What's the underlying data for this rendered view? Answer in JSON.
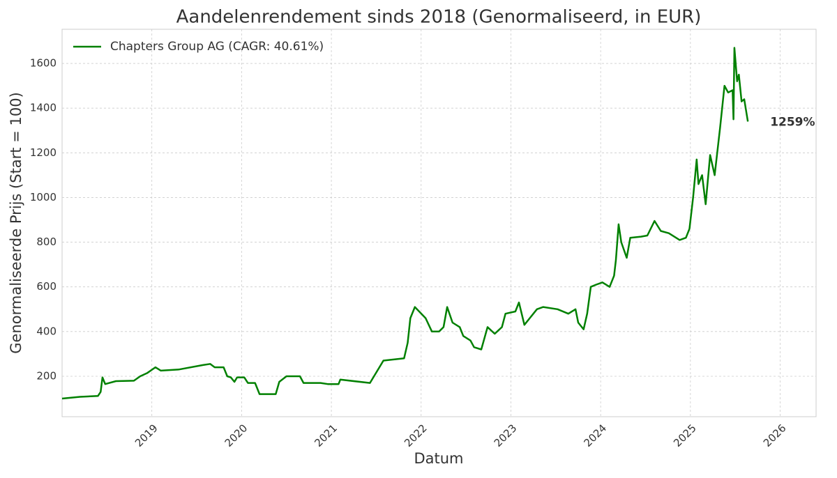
{
  "chart_data": {
    "type": "line",
    "title": "Aandelenrendement sinds 2018 (Genormaliseerd, in EUR)",
    "x_label": "Datum",
    "y_label": "Genormaliseerde Prijs (Start = 100)",
    "annotation": "1259%",
    "legend": "upper left",
    "grid": true,
    "xlim": [
      2018.0,
      2026.4
    ],
    "xticks": [
      2019,
      2020,
      2021,
      2022,
      2023,
      2024,
      2025,
      2026
    ],
    "ylim": [
      19,
      1753
    ],
    "yticks": [
      200,
      400,
      600,
      800,
      1000,
      1200,
      1400,
      1600
    ],
    "x": [
      2018.0,
      2018.2,
      2018.4,
      2018.43,
      2018.45,
      2018.48,
      2018.6,
      2018.8,
      2018.87,
      2018.95,
      2019.04,
      2019.1,
      2019.3,
      2019.57,
      2019.65,
      2019.7,
      2019.8,
      2019.84,
      2019.88,
      2019.92,
      2019.95,
      2020.03,
      2020.07,
      2020.15,
      2020.2,
      2020.38,
      2020.42,
      2020.5,
      2020.65,
      2020.69,
      2020.88,
      2020.96,
      2021.08,
      2021.1,
      2021.43,
      2021.55,
      2021.58,
      2021.81,
      2021.85,
      2021.88,
      2021.93,
      2022.05,
      2022.12,
      2022.2,
      2022.25,
      2022.29,
      2022.35,
      2022.43,
      2022.47,
      2022.55,
      2022.59,
      2022.67,
      2022.74,
      2022.82,
      2022.9,
      2022.94,
      2023.05,
      2023.09,
      2023.15,
      2023.21,
      2023.29,
      2023.36,
      2023.52,
      2023.64,
      2023.72,
      2023.75,
      2023.81,
      2023.85,
      2023.89,
      2023.95,
      2024.02,
      2024.1,
      2024.15,
      2024.17,
      2024.2,
      2024.23,
      2024.29,
      2024.33,
      2024.45,
      2024.52,
      2024.6,
      2024.67,
      2024.76,
      2024.88,
      2024.95,
      2024.99,
      2025.03,
      2025.07,
      2025.09,
      2025.13,
      2025.17,
      2025.22,
      2025.27,
      2025.33,
      2025.38,
      2025.42,
      2025.47,
      2025.48,
      2025.49,
      2025.52,
      2025.54,
      2025.57,
      2025.6,
      2025.64
    ],
    "series": [
      {
        "name": "Chapters Group AG (CAGR: 40.61%)",
        "color": "#008000",
        "values": [
          100,
          108,
          112,
          130,
          195,
          165,
          178,
          180,
          200,
          215,
          240,
          225,
          230,
          250,
          255,
          240,
          240,
          200,
          195,
          175,
          195,
          195,
          170,
          170,
          120,
          120,
          175,
          200,
          200,
          170,
          170,
          165,
          165,
          185,
          170,
          250,
          270,
          280,
          350,
          460,
          510,
          460,
          400,
          400,
          420,
          510,
          440,
          420,
          380,
          360,
          330,
          320,
          420,
          390,
          420,
          480,
          490,
          530,
          430,
          460,
          500,
          510,
          500,
          480,
          500,
          440,
          410,
          480,
          600,
          610,
          620,
          600,
          650,
          720,
          880,
          800,
          730,
          820,
          825,
          830,
          895,
          850,
          840,
          810,
          820,
          860,
          1000,
          1170,
          1060,
          1100,
          970,
          1190,
          1100,
          1310,
          1500,
          1470,
          1480,
          1350,
          1670,
          1520,
          1550,
          1430,
          1440,
          1340
        ]
      }
    ]
  }
}
